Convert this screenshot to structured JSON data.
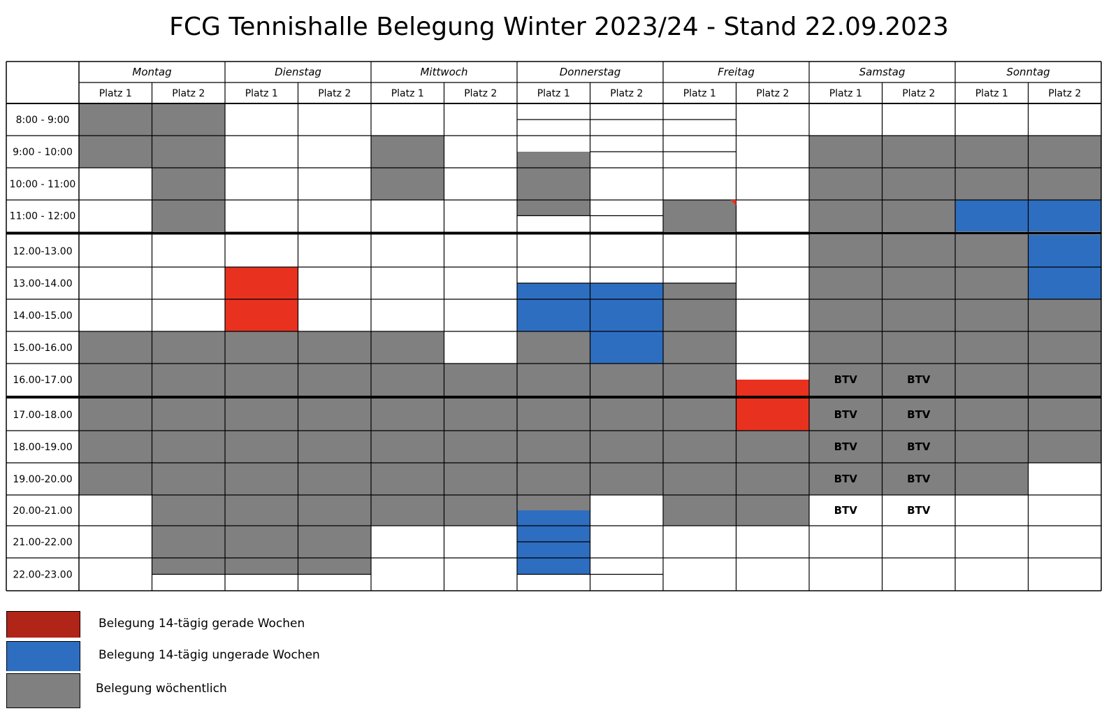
{
  "title": "FCG Tennishalle Belegung Winter 2023/24 - Stand 22.09.2023",
  "days": [
    "Montag",
    "Dienstag",
    "Mittwoch",
    "Donnerstag",
    "Freitag",
    "Samstag",
    "Sonntag"
  ],
  "court_labels": [
    "Platz 1",
    "Platz 2"
  ],
  "times": [
    "8:00 - 9:00",
    "9:00 - 10:00",
    "10:00 - 11:00",
    "11:00 - 12:00",
    "12.00-13.00",
    "13.00-14.00",
    "14.00-15.00",
    "15.00-16.00",
    "16.00-17.00",
    "17.00-18.00",
    "18.00-19.00",
    "19.00-20.00",
    "20.00-21.00",
    "21.00-22.00",
    "22.00-23.00"
  ],
  "colors": {
    "weekly": "#808080",
    "even_weeks": "#e8321f",
    "odd_weeks": "#2e6ec0",
    "legend_even": "#b12418"
  },
  "bookings": [
    {
      "col": 0,
      "from": 0,
      "to": 2,
      "type": "weekly"
    },
    {
      "col": 1,
      "from": 0,
      "to": 4,
      "type": "weekly"
    },
    {
      "col": 4,
      "from": 1,
      "to": 3,
      "type": "weekly"
    },
    {
      "col": 6,
      "from": 1.5,
      "to": 3.5,
      "type": "weekly"
    },
    {
      "col": 8,
      "from": 3,
      "to": 4,
      "type": "weekly"
    },
    {
      "col": 10,
      "from": 1,
      "to": 4,
      "type": "weekly"
    },
    {
      "col": 11,
      "from": 1,
      "to": 4,
      "type": "weekly"
    },
    {
      "col": 12,
      "from": 1,
      "to": 3,
      "type": "weekly"
    },
    {
      "col": 13,
      "from": 1,
      "to": 3,
      "type": "weekly"
    },
    {
      "col": 12,
      "from": 3,
      "to": 4,
      "type": "odd_weeks"
    },
    {
      "col": 13,
      "from": 3,
      "to": 4,
      "type": "odd_weeks"
    },
    {
      "col": 2,
      "from": 5,
      "to": 7,
      "type": "even_weeks"
    },
    {
      "col": 6,
      "from": 5.5,
      "to": 7,
      "type": "odd_weeks"
    },
    {
      "col": 7,
      "from": 5.5,
      "to": 7,
      "type": "odd_weeks"
    },
    {
      "col": 7,
      "from": 7,
      "to": 8,
      "type": "odd_weeks"
    },
    {
      "col": 8,
      "from": 5.5,
      "to": 9,
      "type": "weekly"
    },
    {
      "col": 10,
      "from": 4,
      "to": 9,
      "type": "weekly"
    },
    {
      "col": 11,
      "from": 4,
      "to": 9,
      "type": "weekly"
    },
    {
      "col": 12,
      "from": 4,
      "to": 9,
      "type": "weekly"
    },
    {
      "col": 13,
      "from": 4,
      "to": 6,
      "type": "odd_weeks"
    },
    {
      "col": 13,
      "from": 6,
      "to": 9,
      "type": "weekly"
    },
    {
      "col": 0,
      "from": 7,
      "to": 9,
      "type": "weekly"
    },
    {
      "col": 1,
      "from": 7,
      "to": 9,
      "type": "weekly"
    },
    {
      "col": 2,
      "from": 7,
      "to": 9,
      "type": "weekly"
    },
    {
      "col": 3,
      "from": 7,
      "to": 9,
      "type": "weekly"
    },
    {
      "col": 4,
      "from": 7,
      "to": 9,
      "type": "weekly"
    },
    {
      "col": 5,
      "from": 8,
      "to": 9,
      "type": "weekly"
    },
    {
      "col": 6,
      "from": 7,
      "to": 9,
      "type": "weekly"
    },
    {
      "col": 7,
      "from": 8,
      "to": 9,
      "type": "weekly"
    },
    {
      "col": 9,
      "from": 8.5,
      "to": 9,
      "type": "even_weeks"
    },
    {
      "col": 0,
      "from": 9,
      "to": 12,
      "type": "weekly"
    },
    {
      "col": 1,
      "from": 9,
      "to": 14.5,
      "type": "weekly"
    },
    {
      "col": 2,
      "from": 9,
      "to": 14.5,
      "type": "weekly"
    },
    {
      "col": 3,
      "from": 9,
      "to": 14.5,
      "type": "weekly"
    },
    {
      "col": 4,
      "from": 9,
      "to": 13,
      "type": "weekly"
    },
    {
      "col": 5,
      "from": 9,
      "to": 13,
      "type": "weekly"
    },
    {
      "col": 6,
      "from": 9,
      "to": 12.5,
      "type": "weekly"
    },
    {
      "col": 6,
      "from": 12.5,
      "to": 14.5,
      "type": "odd_weeks"
    },
    {
      "col": 7,
      "from": 9,
      "to": 12,
      "type": "weekly"
    },
    {
      "col": 8,
      "from": 9,
      "to": 13,
      "type": "weekly"
    },
    {
      "col": 9,
      "from": 9,
      "to": 10,
      "type": "even_weeks"
    },
    {
      "col": 9,
      "from": 10,
      "to": 13,
      "type": "weekly"
    },
    {
      "col": 10,
      "from": 9,
      "to": 12,
      "type": "weekly"
    },
    {
      "col": 11,
      "from": 9,
      "to": 12,
      "type": "weekly"
    },
    {
      "col": 12,
      "from": 9,
      "to": 12,
      "type": "weekly"
    },
    {
      "col": 13,
      "from": 9,
      "to": 11,
      "type": "weekly"
    }
  ],
  "slot_lines": [
    {
      "col": 6,
      "at": [
        0.5,
        3.5,
        5.5,
        13.5,
        14.5
      ]
    },
    {
      "col": 7,
      "at": [
        0.5,
        1.5,
        3.5,
        5.5,
        14.5
      ]
    },
    {
      "col": 8,
      "at": [
        0.5,
        1.5,
        5.5
      ]
    },
    {
      "col": 1,
      "at": [
        14.5
      ]
    },
    {
      "col": 2,
      "at": [
        14.5
      ]
    },
    {
      "col": 3,
      "at": [
        14.5
      ]
    }
  ],
  "labels": [
    {
      "col": 10,
      "row": 8,
      "text": "BTV"
    },
    {
      "col": 11,
      "row": 8,
      "text": "BTV"
    },
    {
      "col": 10,
      "row": 9,
      "text": "BTV"
    },
    {
      "col": 11,
      "row": 9,
      "text": "BTV"
    },
    {
      "col": 10,
      "row": 10,
      "text": "BTV"
    },
    {
      "col": 11,
      "row": 10,
      "text": "BTV"
    },
    {
      "col": 10,
      "row": 11,
      "text": "BTV"
    },
    {
      "col": 11,
      "row": 11,
      "text": "BTV"
    },
    {
      "col": 10,
      "row": 12,
      "text": "BTV"
    },
    {
      "col": 11,
      "row": 12,
      "text": "BTV"
    }
  ],
  "legend": [
    {
      "type": "legend_even",
      "text": "Belegung 14-tägig gerade Wochen"
    },
    {
      "type": "odd_weeks",
      "text": "Belegung 14-tägig ungerade Wochen"
    },
    {
      "type": "weekly",
      "text": "Belegung wöchentlich"
    }
  ]
}
